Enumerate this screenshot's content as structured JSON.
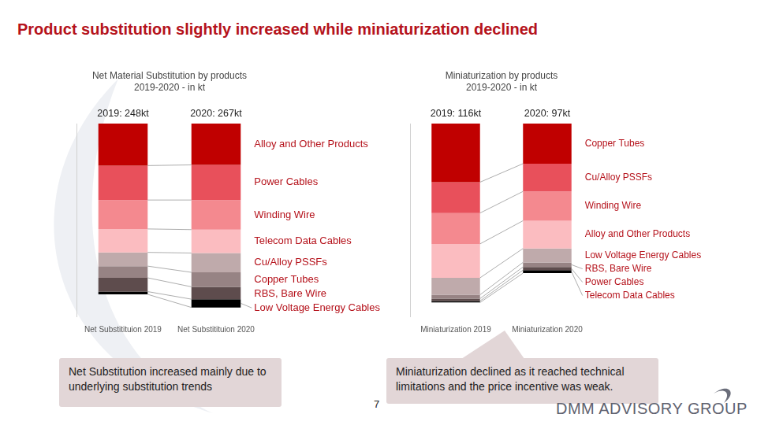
{
  "title": "Product substitution slightly increased while miniaturization declined",
  "chart_data": [
    {
      "type": "bar",
      "title": [
        "Net Material Substitution by products",
        "2019-2020 - in kt"
      ],
      "categories": [
        "Net Substitituion 2019",
        "Net Substitituion 2020"
      ],
      "bar_labels": [
        "2019: 248kt",
        "2020: 267kt"
      ],
      "stacked": true,
      "grid": false,
      "tick_labels": "x",
      "ylim": [
        280,
        0
      ],
      "series": [
        {
          "name": "Alloy and Other Products",
          "color": "#c00000",
          "values": [
            61,
            60
          ]
        },
        {
          "name": "Power Cables",
          "color": "#e8505b",
          "values": [
            50,
            51
          ]
        },
        {
          "name": "Winding Wire",
          "color": "#f4898f",
          "values": [
            42,
            43
          ]
        },
        {
          "name": "Telecom Data Cables",
          "color": "#fbbcc0",
          "values": [
            34,
            34
          ]
        },
        {
          "name": "Cu/Alloy PSSFs",
          "color": "#bfaaab",
          "values": [
            20,
            28
          ]
        },
        {
          "name": "Copper Tubes",
          "color": "#978384",
          "values": [
            17,
            21
          ]
        },
        {
          "name": "RBS, Bare Wire",
          "color": "#5e4c4d",
          "values": [
            20,
            18
          ]
        },
        {
          "name": "Low Voltage Energy Cables",
          "color": "#000000",
          "values": [
            4,
            12
          ]
        }
      ]
    },
    {
      "type": "bar",
      "title": [
        "Miniaturization by products",
        "2019-2020 - in kt"
      ],
      "categories": [
        "Miniaturization 2019",
        "Miniaturization 2020"
      ],
      "bar_labels": [
        "2019: 116kt",
        "2020: 97kt"
      ],
      "stacked": true,
      "grid": false,
      "tick_labels": "x",
      "ylim": [
        125,
        0
      ],
      "series": [
        {
          "name": "Copper Tubes",
          "color": "#c00000",
          "values": [
            38,
            26
          ]
        },
        {
          "name": "Cu/Alloy PSSFs",
          "color": "#e8505b",
          "values": [
            20,
            18
          ]
        },
        {
          "name": "Winding Wire",
          "color": "#f4898f",
          "values": [
            20,
            19
          ]
        },
        {
          "name": "Alloy and Other Products",
          "color": "#fbbcc0",
          "values": [
            22,
            18
          ]
        },
        {
          "name": "Low Voltage Energy Cables",
          "color": "#bfaaab",
          "values": [
            11,
            9
          ]
        },
        {
          "name": "RBS, Bare Wire",
          "color": "#978384",
          "values": [
            2.5,
            3
          ]
        },
        {
          "name": "Power Cables",
          "color": "#5e4c4d",
          "values": [
            1.5,
            2
          ]
        },
        {
          "name": "Telecom Data Cables",
          "color": "#000000",
          "values": [
            1,
            2
          ]
        }
      ]
    }
  ],
  "annotations": [
    "Net Substitution increased mainly due to underlying substitution trends",
    "Miniaturization declined as it reached technical limitations and the price incentive was weak."
  ],
  "page_number": 7,
  "brand": "DMM ADVISORY GROUP"
}
